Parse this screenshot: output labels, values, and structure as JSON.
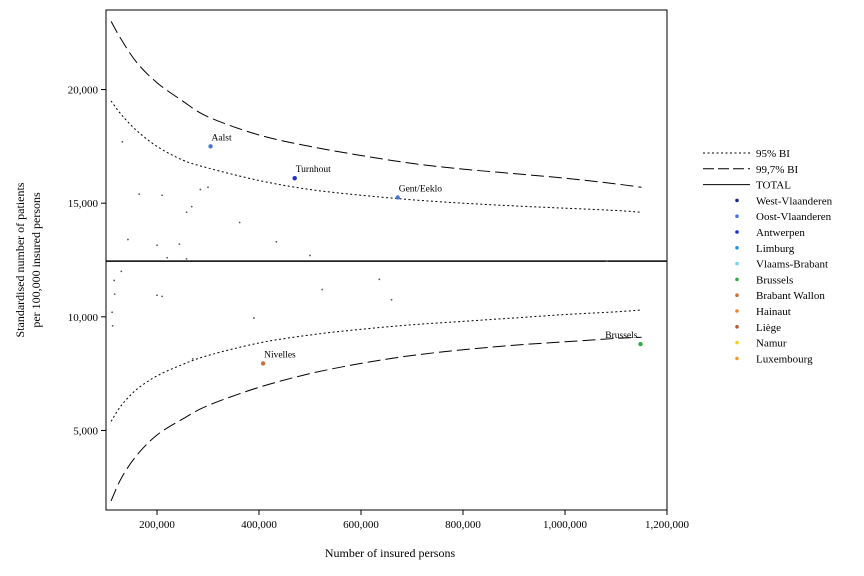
{
  "chart_data": {
    "type": "scatter",
    "title": "",
    "xlabel": "Number of insured persons",
    "ylabel": [
      "Standardised number of patients",
      "per 100,000 insured persons"
    ],
    "xlim": [
      100000,
      1200000
    ],
    "ylim": [
      1500,
      23500
    ],
    "x_ticks": [
      200000,
      400000,
      600000,
      800000,
      1000000,
      1200000
    ],
    "x_tick_labels": [
      "200,000",
      "400,000",
      "600,000",
      "800,000",
      "1,000,000",
      "1,200,000"
    ],
    "y_ticks": [
      5000,
      10000,
      15000,
      20000
    ],
    "y_tick_labels": [
      "5,000",
      "10,000",
      "15,000",
      "20,000"
    ],
    "grid": false,
    "legend_position": "right",
    "total": 12450,
    "legend": [
      {
        "label": "95% BI",
        "kind": "line-dotted",
        "color": "#000000"
      },
      {
        "label": "99,7% BI",
        "kind": "line-dashed",
        "color": "#000000"
      },
      {
        "label": "TOTAL",
        "kind": "line-solid",
        "color": "#000000"
      },
      {
        "label": "West-Vlaanderen",
        "kind": "point",
        "color": "#1f2a7a"
      },
      {
        "label": "Oost-Vlaanderen",
        "kind": "point",
        "color": "#4a78d6"
      },
      {
        "label": "Antwerpen",
        "kind": "point",
        "color": "#1a2ed8"
      },
      {
        "label": "Limburg",
        "kind": "point",
        "color": "#2e8fd8"
      },
      {
        "label": "Vlaams-Brabant",
        "kind": "point",
        "color": "#7fd0f0"
      },
      {
        "label": "Brussels",
        "kind": "point",
        "color": "#3aa84a"
      },
      {
        "label": "Brabant Wallon",
        "kind": "point",
        "color": "#c8703a"
      },
      {
        "label": "Hainaut",
        "kind": "point",
        "color": "#e8883a"
      },
      {
        "label": "Liège",
        "kind": "point",
        "color": "#b05a3a"
      },
      {
        "label": "Namur",
        "kind": "point",
        "color": "#f0d020"
      },
      {
        "label": "Luxembourg",
        "kind": "point",
        "color": "#e8a030"
      }
    ],
    "bands": {
      "x": [
        110000,
        130000,
        160000,
        200000,
        250000,
        300000,
        400000,
        500000,
        600000,
        700000,
        800000,
        900000,
        1000000,
        1100000,
        1150000
      ],
      "upper_95": [
        19500,
        18900,
        18200,
        17500,
        16900,
        16550,
        16000,
        15600,
        15350,
        15150,
        15000,
        14880,
        14780,
        14680,
        14600
      ],
      "lower_95": [
        5400,
        6100,
        6800,
        7400,
        7900,
        8300,
        8850,
        9200,
        9450,
        9650,
        9800,
        9950,
        10100,
        10220,
        10300
      ],
      "upper_997": [
        23000,
        22200,
        21200,
        20300,
        19500,
        18800,
        18000,
        17500,
        17100,
        16750,
        16500,
        16300,
        16100,
        15850,
        15700
      ],
      "lower_997": [
        1900,
        2900,
        3900,
        4800,
        5500,
        6100,
        6900,
        7500,
        7950,
        8300,
        8550,
        8750,
        8900,
        9050,
        9100
      ]
    },
    "points": [
      {
        "label": "Aalst",
        "x": 305000,
        "y": 17500,
        "color": "#4a78d6"
      },
      {
        "label": "Turnhout",
        "x": 470000,
        "y": 16100,
        "color": "#1a2ed8"
      },
      {
        "label": "Gent/Eeklo",
        "x": 672000,
        "y": 15250,
        "color": "#4a78d6"
      },
      {
        "label": "Nivelles",
        "x": 408000,
        "y": 7950,
        "color": "#c8703a"
      },
      {
        "label": "Brussels",
        "x": 1148000,
        "y": 8800,
        "color": "#3aa84a"
      },
      {
        "label": "",
        "x": 132000,
        "y": 17700,
        "color": "#555555"
      },
      {
        "label": "",
        "x": 165000,
        "y": 15400,
        "color": "#555555"
      },
      {
        "label": "",
        "x": 210000,
        "y": 15350,
        "color": "#555555"
      },
      {
        "label": "",
        "x": 285000,
        "y": 15600,
        "color": "#555555"
      },
      {
        "label": "",
        "x": 300000,
        "y": 15700,
        "color": "#555555"
      },
      {
        "label": "",
        "x": 268000,
        "y": 14850,
        "color": "#555555"
      },
      {
        "label": "",
        "x": 258000,
        "y": 14600,
        "color": "#555555"
      },
      {
        "label": "",
        "x": 362000,
        "y": 14150,
        "color": "#555555"
      },
      {
        "label": "",
        "x": 143000,
        "y": 13400,
        "color": "#555555"
      },
      {
        "label": "",
        "x": 200000,
        "y": 13150,
        "color": "#555555"
      },
      {
        "label": "",
        "x": 244000,
        "y": 13200,
        "color": "#555555"
      },
      {
        "label": "",
        "x": 434000,
        "y": 13300,
        "color": "#555555"
      },
      {
        "label": "",
        "x": 220000,
        "y": 12600,
        "color": "#555555"
      },
      {
        "label": "",
        "x": 258000,
        "y": 12550,
        "color": "#555555"
      },
      {
        "label": "",
        "x": 500000,
        "y": 12700,
        "color": "#555555"
      },
      {
        "label": "",
        "x": 1082000,
        "y": 12450,
        "color": "#555555"
      },
      {
        "label": "",
        "x": 130000,
        "y": 12000,
        "color": "#555555"
      },
      {
        "label": "",
        "x": 116000,
        "y": 11600,
        "color": "#555555"
      },
      {
        "label": "",
        "x": 636000,
        "y": 11650,
        "color": "#555555"
      },
      {
        "label": "",
        "x": 524000,
        "y": 11200,
        "color": "#555555"
      },
      {
        "label": "",
        "x": 117000,
        "y": 11000,
        "color": "#555555"
      },
      {
        "label": "",
        "x": 200000,
        "y": 10950,
        "color": "#555555"
      },
      {
        "label": "",
        "x": 210000,
        "y": 10900,
        "color": "#555555"
      },
      {
        "label": "",
        "x": 660000,
        "y": 10750,
        "color": "#555555"
      },
      {
        "label": "",
        "x": 112000,
        "y": 10200,
        "color": "#555555"
      },
      {
        "label": "",
        "x": 390000,
        "y": 9950,
        "color": "#555555"
      },
      {
        "label": "",
        "x": 113000,
        "y": 9600,
        "color": "#555555"
      },
      {
        "label": "",
        "x": 270000,
        "y": 8150,
        "color": "#555555"
      }
    ]
  }
}
